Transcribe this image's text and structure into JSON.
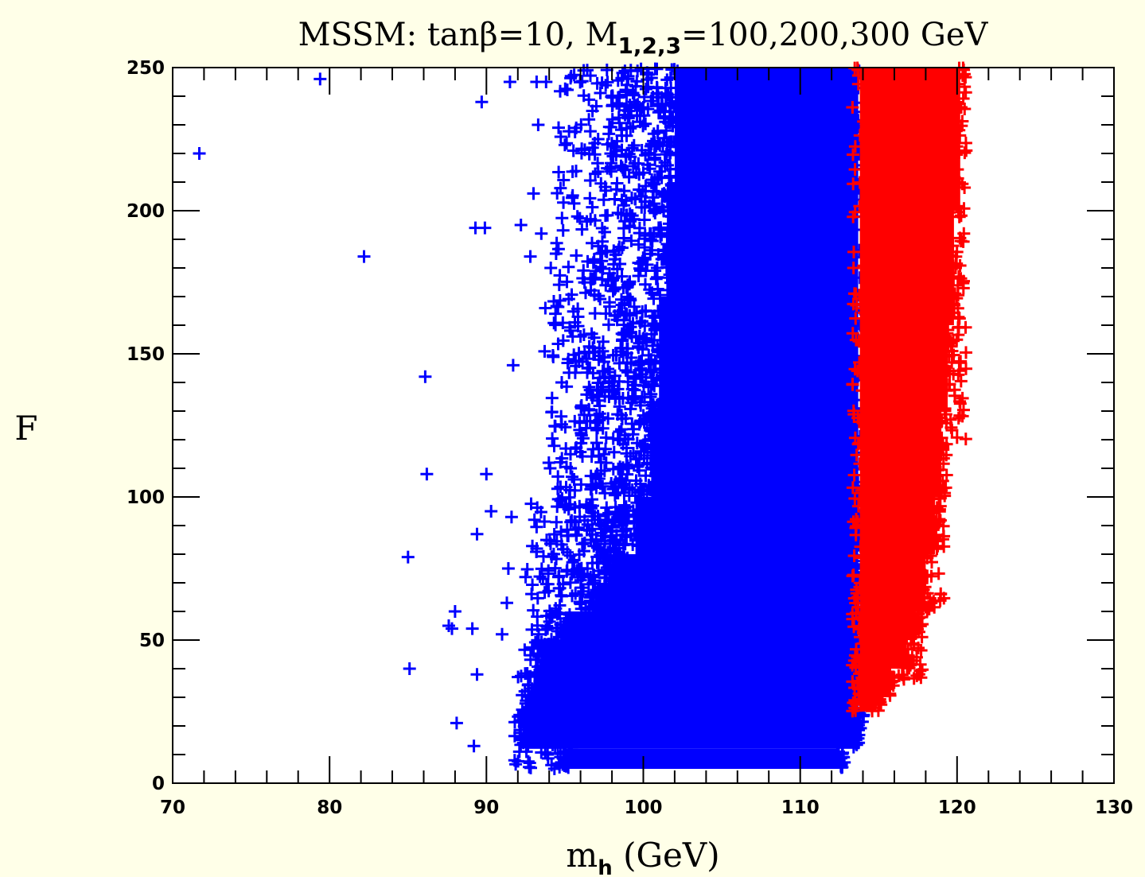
{
  "chart_data": {
    "type": "scatter",
    "title": "MSSM: tanβ=10, M",
    "title_subscript": "1,2,3",
    "title_suffix": "=100,200,300 GeV",
    "xlabel": "m",
    "xlabel_subscript": "h",
    "xlabel_suffix": " (GeV)",
    "ylabel": "F",
    "xlim": [
      70,
      130
    ],
    "ylim": [
      0,
      250
    ],
    "x_ticks": [
      70,
      80,
      90,
      100,
      110,
      120,
      130
    ],
    "y_ticks": [
      0,
      50,
      100,
      150,
      200,
      250
    ],
    "marker": "plus",
    "grid": false,
    "series": [
      {
        "color": "#0000ff",
        "points": [
          [
            71.7,
            220
          ],
          [
            79.4,
            246
          ],
          [
            82.2,
            184
          ],
          [
            85.0,
            79
          ],
          [
            85.1,
            40
          ],
          [
            86.1,
            142
          ],
          [
            86.2,
            108
          ],
          [
            87.6,
            55
          ],
          [
            87.8,
            54
          ],
          [
            88.0,
            60
          ],
          [
            88.1,
            21
          ],
          [
            89.1,
            54
          ],
          [
            89.2,
            13
          ],
          [
            89.3,
            194
          ],
          [
            89.4,
            38
          ],
          [
            89.4,
            87
          ],
          [
            89.7,
            238
          ],
          [
            89.9,
            194
          ],
          [
            90.0,
            108
          ],
          [
            90.3,
            95
          ],
          [
            91.0,
            52
          ],
          [
            91.3,
            63
          ],
          [
            91.4,
            75
          ],
          [
            91.5,
            245
          ],
          [
            91.6,
            93
          ],
          [
            91.7,
            146
          ],
          [
            91.8,
            8
          ],
          [
            92.2,
            195
          ],
          [
            92.5,
            72
          ],
          [
            92.8,
            184
          ],
          [
            93.0,
            206
          ],
          [
            93.2,
            245
          ],
          [
            93.3,
            230
          ],
          [
            93.5,
            192
          ],
          [
            93.8,
            245
          ],
          [
            94.1,
            180
          ],
          [
            94.4,
            164
          ],
          [
            94.6,
            229
          ],
          [
            94.8,
            140
          ],
          [
            95.0,
            223
          ],
          [
            95.4,
            247
          ],
          [
            95.8,
            198
          ],
          [
            96.2,
            249
          ]
        ],
        "dense_bands": [
          {
            "F": [
              5,
              12
            ],
            "mh": [
              95.0,
              112.5
            ]
          },
          {
            "F": [
              12,
              20
            ],
            "mh": [
              92.5,
              113.5
            ]
          },
          {
            "F": [
              20,
              30
            ],
            "mh": [
              92.5,
              113.7
            ]
          },
          {
            "F": [
              30,
              40
            ],
            "mh": [
              93.0,
              113.7
            ]
          },
          {
            "F": [
              40,
              50
            ],
            "mh": [
              93.5,
              113.7
            ]
          },
          {
            "F": [
              50,
              60
            ],
            "mh": [
              95.0,
              113.7
            ]
          },
          {
            "F": [
              60,
              70
            ],
            "mh": [
              97.0,
              113.7
            ]
          },
          {
            "F": [
              70,
              80
            ],
            "mh": [
              98.0,
              113.7
            ]
          },
          {
            "F": [
              80,
              100
            ],
            "mh": [
              99.5,
              113.7
            ]
          },
          {
            "F": [
              100,
              130
            ],
            "mh": [
              100.5,
              113.7
            ]
          },
          {
            "F": [
              130,
              170
            ],
            "mh": [
              101.0,
              113.7
            ]
          },
          {
            "F": [
              170,
              210
            ],
            "mh": [
              101.5,
              113.7
            ]
          },
          {
            "F": [
              210,
              250
            ],
            "mh": [
              102.0,
              113.7
            ]
          }
        ],
        "sparse_bands": [
          {
            "F": [
              5,
              60
            ],
            "mh": [
              91.5,
              95.5
            ],
            "count": 180
          },
          {
            "F": [
              60,
              100
            ],
            "mh": [
              92.5,
              99.0
            ],
            "count": 260
          },
          {
            "F": [
              100,
              170
            ],
            "mh": [
              93.0,
              101.0
            ],
            "count": 420
          },
          {
            "F": [
              170,
              250
            ],
            "mh": [
              93.5,
              102.0
            ],
            "count": 420
          }
        ]
      },
      {
        "color": "#ff0000",
        "dense_bands": [
          {
            "F": [
              25,
              30
            ],
            "mh": [
              113.8,
              114.8
            ]
          },
          {
            "F": [
              30,
              40
            ],
            "mh": [
              113.8,
              115.8
            ]
          },
          {
            "F": [
              40,
              50
            ],
            "mh": [
              113.8,
              116.8
            ]
          },
          {
            "F": [
              50,
              60
            ],
            "mh": [
              113.8,
              117.4
            ]
          },
          {
            "F": [
              60,
              80
            ],
            "mh": [
              113.8,
              118.0
            ]
          },
          {
            "F": [
              80,
              100
            ],
            "mh": [
              113.8,
              118.6
            ]
          },
          {
            "F": [
              100,
              130
            ],
            "mh": [
              113.8,
              119.0
            ]
          },
          {
            "F": [
              130,
              160
            ],
            "mh": [
              113.8,
              119.4
            ]
          },
          {
            "F": [
              160,
              200
            ],
            "mh": [
              113.8,
              119.8
            ]
          },
          {
            "F": [
              200,
              250
            ],
            "mh": [
              113.8,
              120.2
            ]
          }
        ],
        "sparse_bands": [
          {
            "F": [
              35,
              60
            ],
            "mh": [
              115.5,
              117.8
            ],
            "count": 40
          },
          {
            "F": [
              60,
              120
            ],
            "mh": [
              117.5,
              119.2
            ],
            "count": 60
          },
          {
            "F": [
              120,
              250
            ],
            "mh": [
              119.0,
              120.6
            ],
            "count": 90
          }
        ]
      }
    ]
  }
}
